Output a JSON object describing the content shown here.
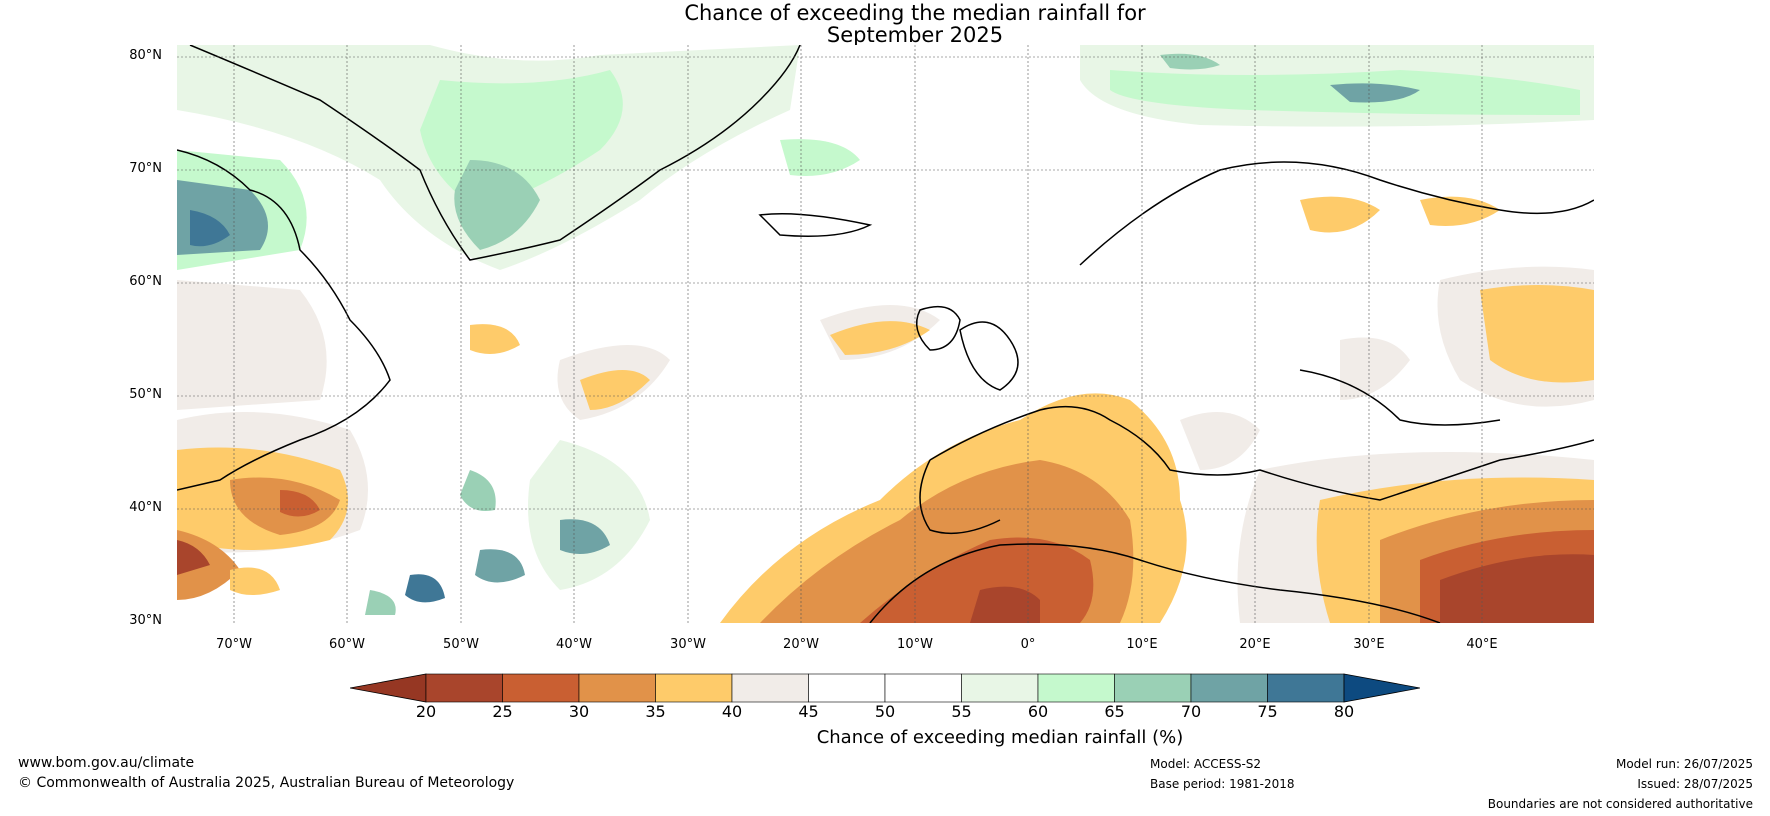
{
  "title_line1": "Chance of exceeding the median rainfall for",
  "title_line2": "September 2025",
  "lat_labels": [
    "80°N",
    "70°N",
    "60°N",
    "50°N",
    "40°N",
    "30°N"
  ],
  "lon_labels": [
    "70°W",
    "60°W",
    "50°W",
    "40°W",
    "30°W",
    "20°W",
    "10°W",
    "0°",
    "10°E",
    "20°E",
    "30°E",
    "40°E"
  ],
  "map_extent": {
    "lon_min": -75,
    "lon_max": 50,
    "lat_min": 30,
    "lat_max": 81
  },
  "colorbar": {
    "ticks": [
      "20",
      "25",
      "30",
      "35",
      "40",
      "45",
      "50",
      "55",
      "60",
      "65",
      "70",
      "75",
      "80"
    ],
    "colors": [
      "#a9452c",
      "#c95f32",
      "#e19249",
      "#fecb6a",
      "#f1ece8",
      "#ffffff",
      "#ffffff",
      "#e8f6e6",
      "#c5f9cd",
      "#9ad0b5",
      "#6fa3a5",
      "#3f7796"
    ],
    "under_color": "#963723",
    "over_color": "#0d4a80",
    "label": "Chance of exceeding median rainfall (%)"
  },
  "footer": {
    "website": "www.bom.gov.au/climate",
    "copyright": "© Commonwealth of Australia 2025, Australian Bureau of Meteorology",
    "model": "Model: ACCESS-S2",
    "base_period": "Base period: 1981-2018",
    "model_run": "Model run: 26/07/2025",
    "issued": "Issued: 28/07/2025",
    "disclaimer": "Boundaries are not considered authoritative"
  }
}
